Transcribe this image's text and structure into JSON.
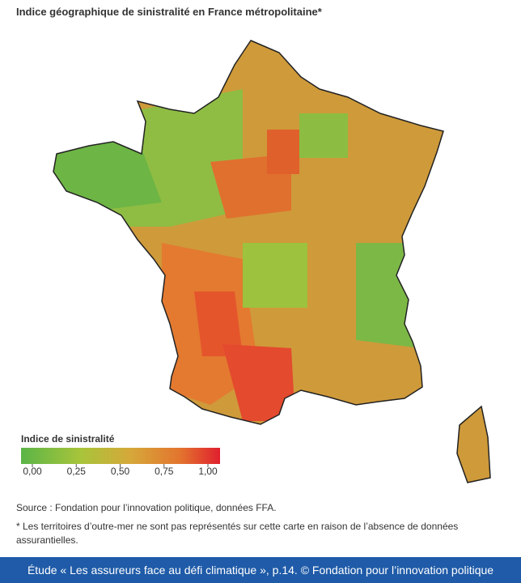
{
  "header": {
    "title": "Indice géographique de sinistralité en France métropolitaine*"
  },
  "legend": {
    "title": "Indice de sinistralité",
    "ticks": [
      {
        "value": 0,
        "label": "0,00"
      },
      {
        "value": 0.25,
        "label": "0,25"
      },
      {
        "value": 0.5,
        "label": "0,50"
      },
      {
        "value": 0.75,
        "label": "0,75"
      },
      {
        "value": 1,
        "label": "1,00"
      }
    ]
  },
  "notes": {
    "source": "Source : Fondation pour l’innovation politique, données FFA.",
    "footnote": "* Les territoires d’outre-mer ne sont pas représentés sur cette carte en raison de l’absence de données assurantielles."
  },
  "footer": {
    "text": "Étude « Les assureurs face au défi climatique », p.14. © Fondation pour l’innovation politique"
  }
}
